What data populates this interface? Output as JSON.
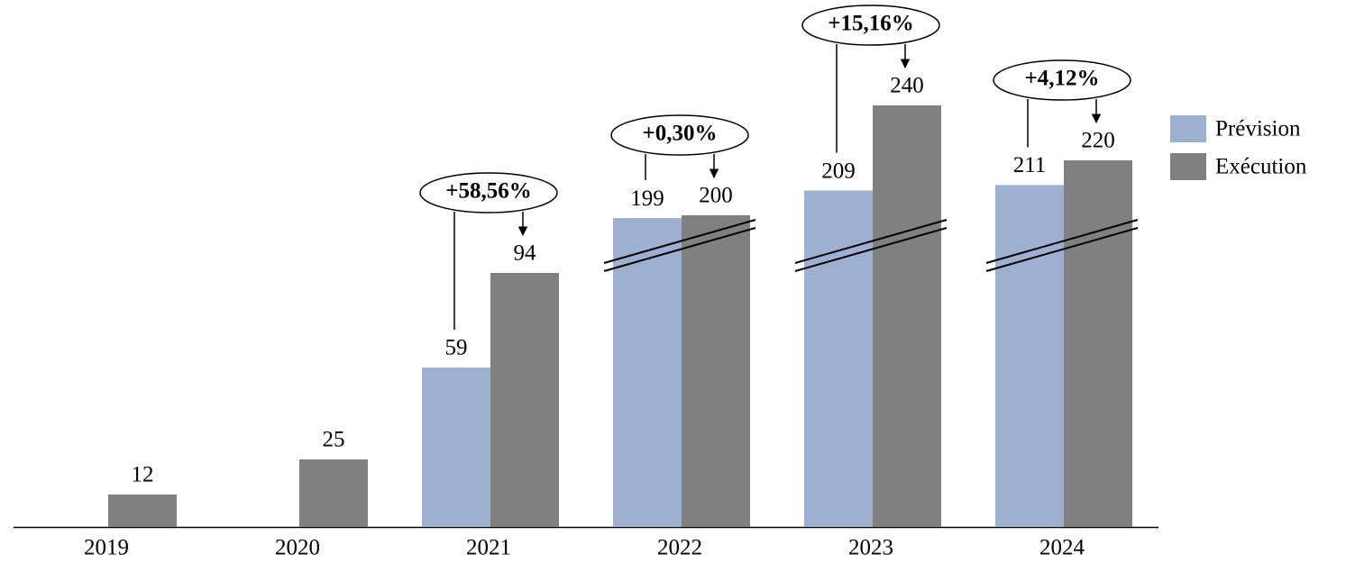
{
  "chart_data": {
    "type": "bar",
    "categories": [
      "2019",
      "2020",
      "2021",
      "2022",
      "2023",
      "2024"
    ],
    "series": [
      {
        "name": "Prévision",
        "color": "#9db0cf",
        "values": [
          null,
          null,
          59,
          199,
          209,
          211
        ]
      },
      {
        "name": "Exécution",
        "color": "#808080",
        "values": [
          12,
          25,
          94,
          200,
          240,
          220
        ]
      }
    ],
    "growth_labels": [
      null,
      null,
      "+58,56%",
      "+0,30%",
      "+15,16%",
      "+4,12%"
    ]
  }
}
